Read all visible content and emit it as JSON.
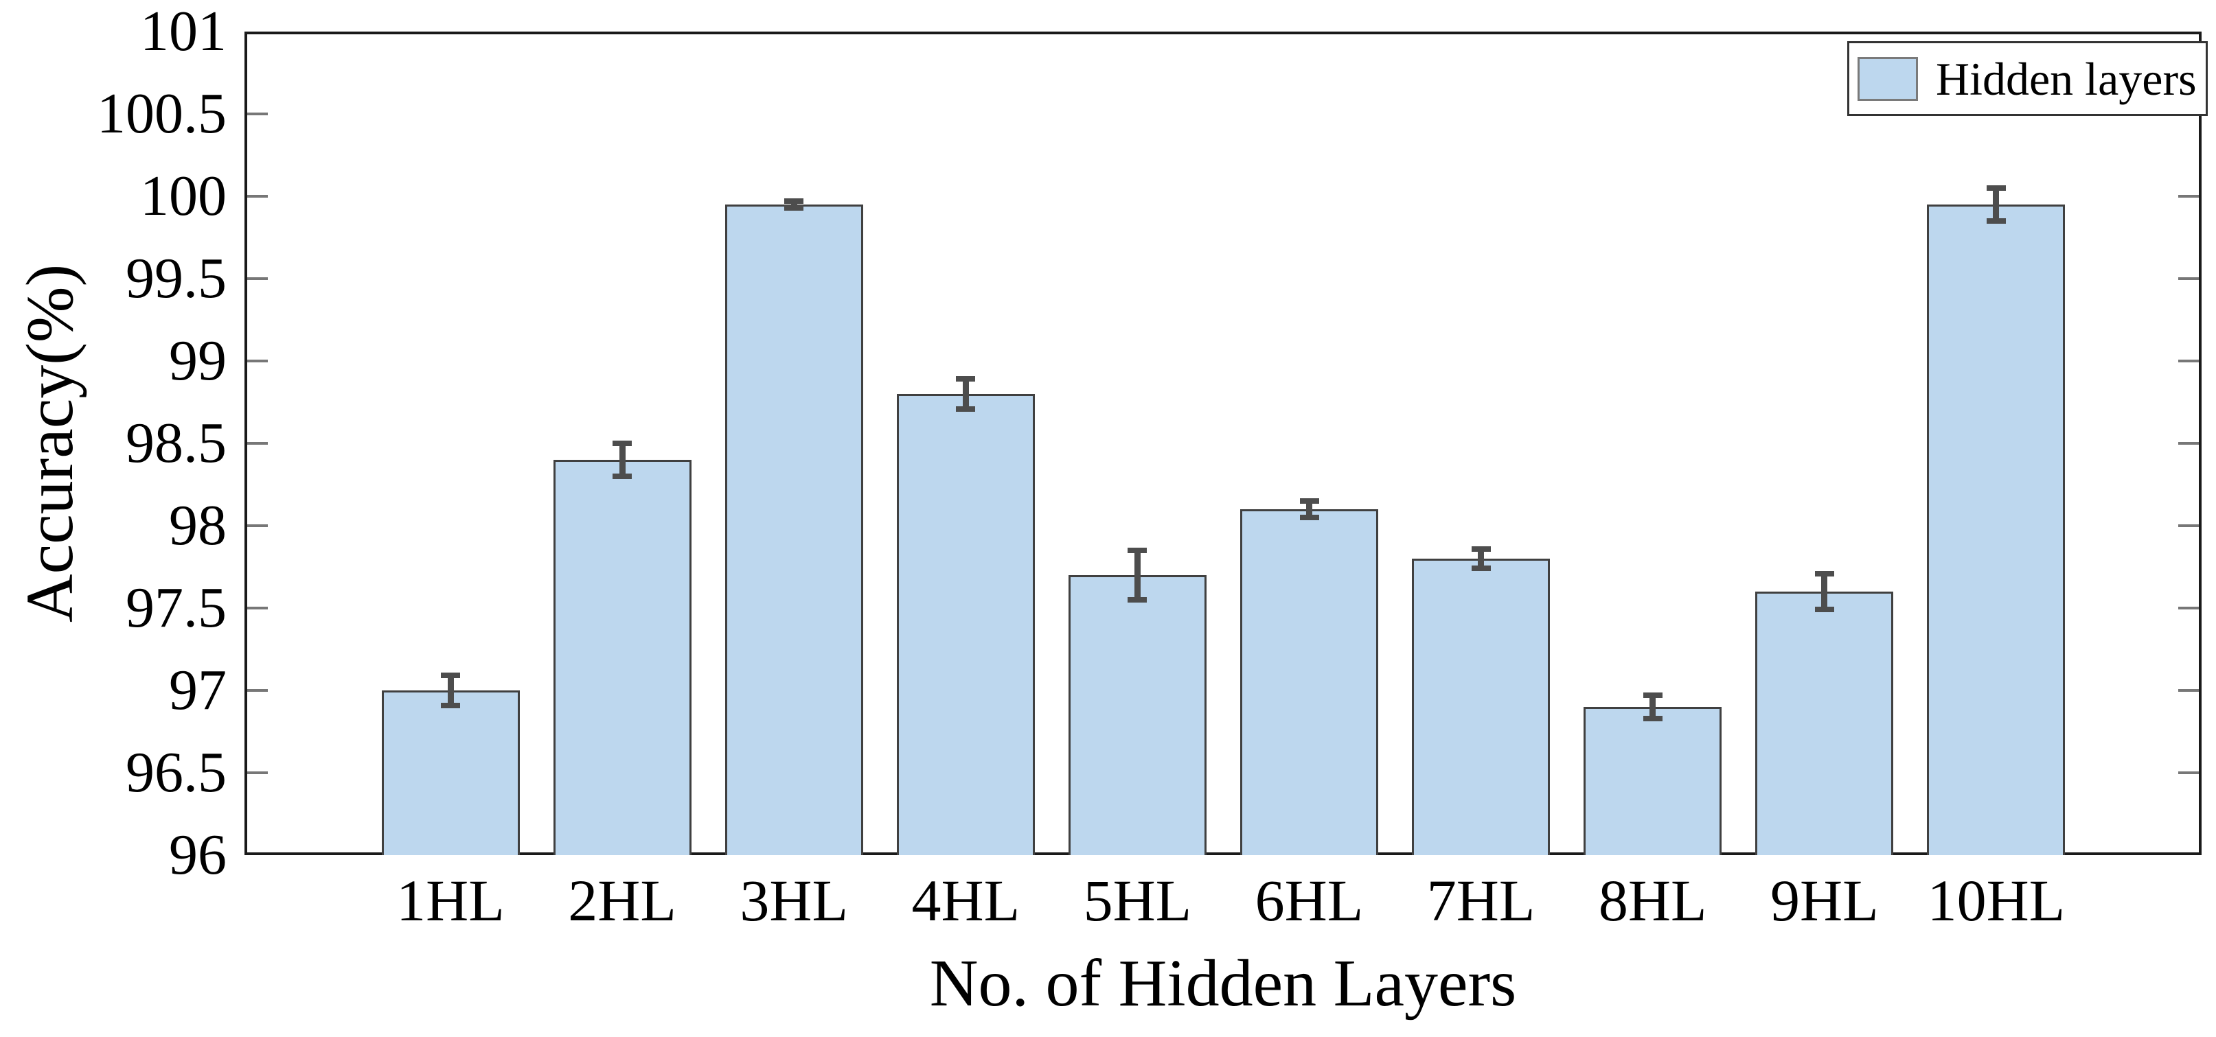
{
  "chart_data": {
    "type": "bar",
    "title": "",
    "categories": [
      "1HL",
      "2HL",
      "3HL",
      "4HL",
      "5HL",
      "6HL",
      "7HL",
      "8HL",
      "9HL",
      "10HL"
    ],
    "series": [
      {
        "name": "Hidden layers",
        "values": [
          97.0,
          98.4,
          99.95,
          98.8,
          97.7,
          98.1,
          97.8,
          96.9,
          97.6,
          99.95
        ],
        "errors": [
          0.09,
          0.1,
          0.02,
          0.09,
          0.15,
          0.05,
          0.06,
          0.07,
          0.11,
          0.1
        ]
      }
    ],
    "xlabel": "No. of Hidden Layers",
    "ylabel": "Accuracy(%)",
    "ylim": [
      96,
      101
    ],
    "ytick_step": 0.5,
    "yticks": [
      "101",
      "100.5",
      "100",
      "99.5",
      "99",
      "98.5",
      "98",
      "97.5",
      "97",
      "96.5",
      "96"
    ],
    "grid": false,
    "legend": {
      "position": "top-right",
      "entries": [
        "Hidden layers"
      ]
    },
    "colors": {
      "bar_fill": "#bdd7ee",
      "bar_border": "#404040",
      "error_bar": "#4d4d4d",
      "axis": "#1a1a1a",
      "tick": "#777777"
    }
  }
}
